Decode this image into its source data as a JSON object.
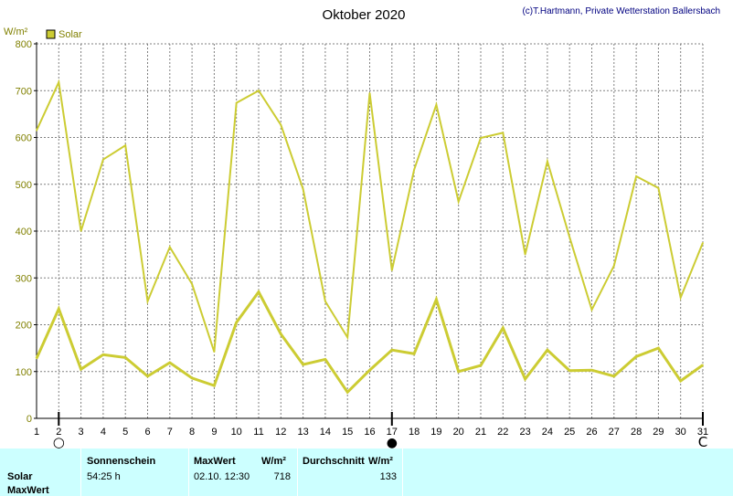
{
  "header": {
    "title": "Oktober 2020",
    "credit": "(c)T.Hartmann, Private Wetterstation Ballersbach"
  },
  "chart_data": {
    "type": "line",
    "title": "Oktober 2020",
    "ylabel": "W/m²",
    "xlabel": "",
    "ylim": [
      0,
      800
    ],
    "yticks": [
      0,
      100,
      200,
      300,
      400,
      500,
      600,
      700,
      800
    ],
    "x": [
      1,
      2,
      3,
      4,
      5,
      6,
      7,
      8,
      9,
      10,
      11,
      12,
      13,
      14,
      15,
      16,
      17,
      18,
      19,
      20,
      21,
      22,
      23,
      24,
      25,
      26,
      27,
      28,
      29,
      30,
      31
    ],
    "grid": true,
    "legend": {
      "position": "top-left",
      "entries": [
        "Solar"
      ]
    },
    "color": "#cccc33",
    "series": [
      {
        "name": "Solar",
        "kind": "max",
        "values": [
          615,
          718,
          400,
          553,
          583,
          250,
          366,
          287,
          142,
          674,
          700,
          627,
          490,
          250,
          173,
          695,
          316,
          531,
          670,
          463,
          599,
          610,
          350,
          549,
          387,
          232,
          326,
          517,
          492,
          258,
          375
        ]
      },
      {
        "kind": "average",
        "values": [
          128,
          234,
          105,
          136,
          130,
          90,
          119,
          86,
          70,
          205,
          270,
          180,
          115,
          126,
          56,
          103,
          146,
          138,
          254,
          100,
          113,
          193,
          84,
          146,
          102,
          103,
          90,
          132,
          150,
          80,
          114
        ]
      }
    ],
    "moon_markers": [
      {
        "day": 2,
        "phase": "full-moon",
        "symbol": "○"
      },
      {
        "day": 17,
        "phase": "new-moon",
        "symbol": "●"
      },
      {
        "day": 31,
        "phase": "full-moon",
        "symbol": "C"
      }
    ]
  },
  "stats": {
    "headers": {
      "sunshine": "Sonnenschein",
      "max": "MaxWert",
      "max_unit": "W/m²",
      "avg": "Durchschnitt",
      "avg_unit": "W/m²"
    },
    "row_labels": [
      "Solar",
      "MaxWert"
    ],
    "values": {
      "sunshine": "54:25 h",
      "max_datetime": "02.10.  12:30",
      "max_value": "718",
      "avg_value": "133"
    }
  }
}
